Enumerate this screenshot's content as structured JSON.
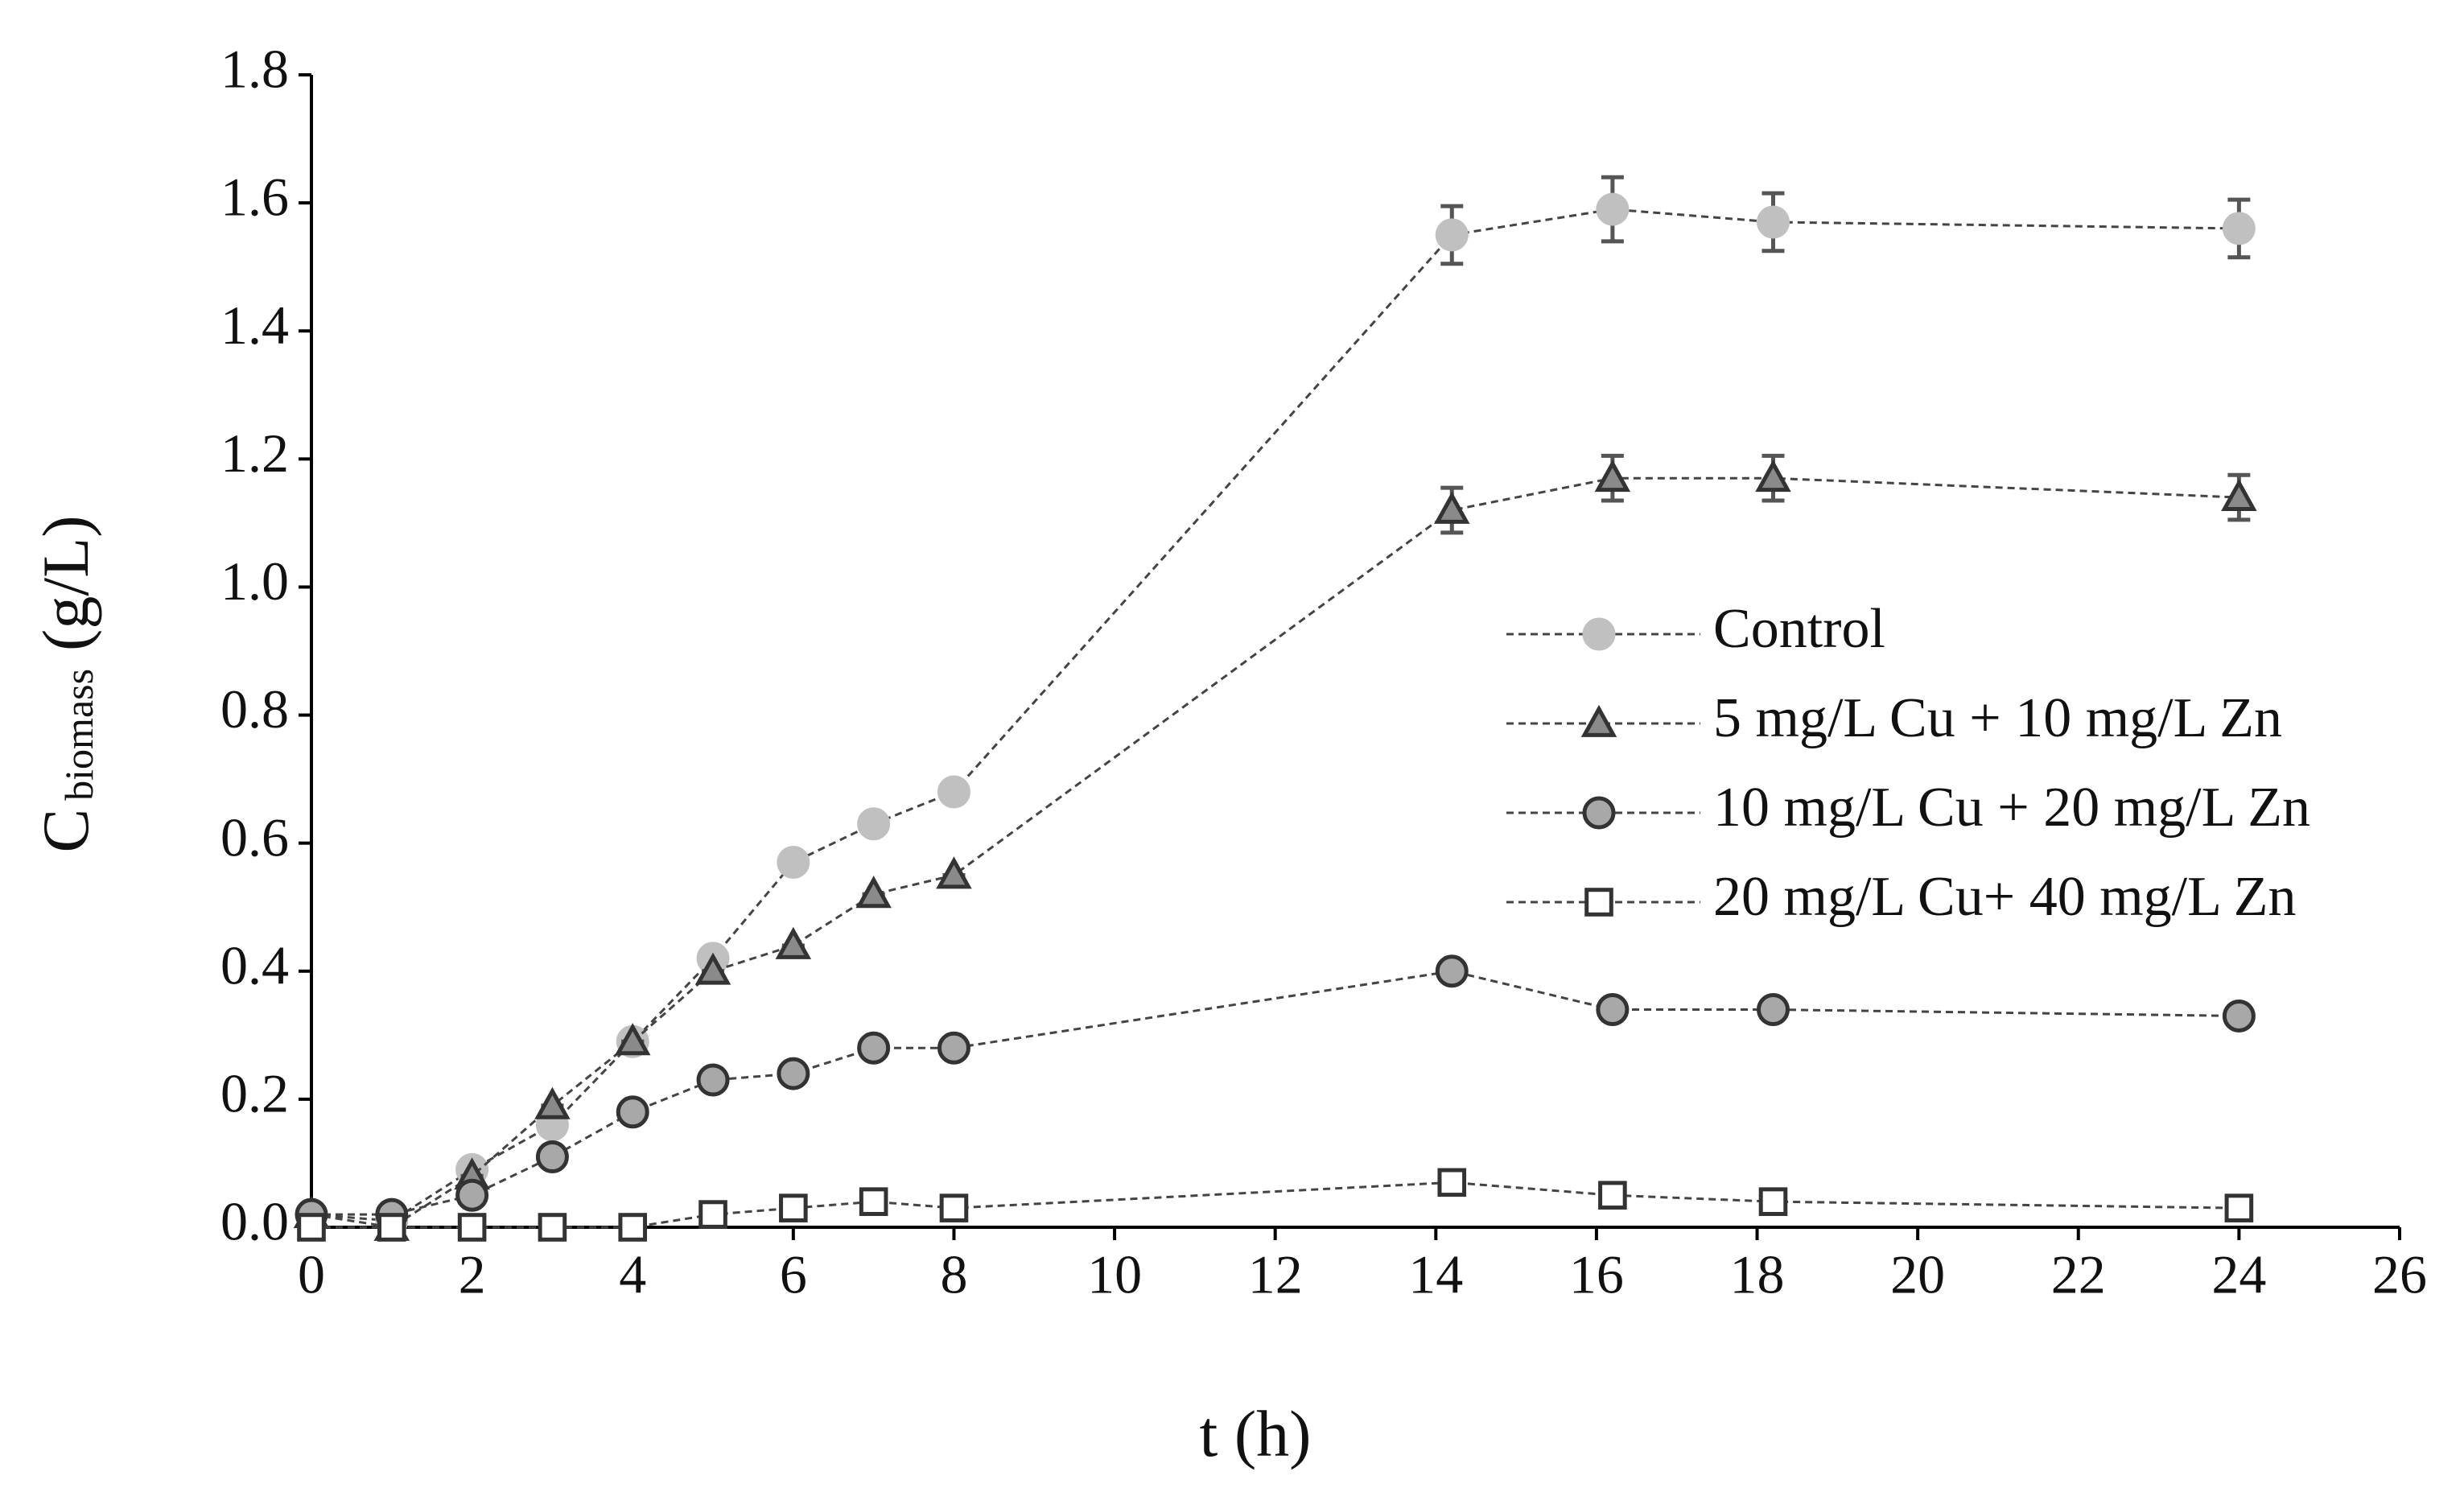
{
  "chart_data": {
    "type": "line",
    "x_label": "t (h)",
    "y_label": {
      "main": "C",
      "sub": "biomass",
      "unit": "(g/L)"
    },
    "x": [
      0,
      1,
      2,
      3,
      4,
      5,
      6,
      7,
      8,
      14.2,
      16.2,
      18.2,
      24
    ],
    "xlim": [
      0,
      26
    ],
    "xticks": [
      0,
      2,
      4,
      6,
      8,
      10,
      12,
      14,
      16,
      18,
      20,
      22,
      24,
      26
    ],
    "ylim": [
      0,
      1.8
    ],
    "yticks": [
      {
        "value": 0,
        "label": "0.0"
      },
      0.2,
      0.4,
      0.6,
      0.8,
      {
        "value": 1,
        "label": "1.0"
      },
      1.2,
      1.4,
      1.6,
      1.8
    ],
    "series": [
      {
        "name": "Control",
        "marker": "circle",
        "color": "#c0c0c0",
        "fill": "#c0c0c0",
        "values": [
          0.02,
          0.01,
          0.09,
          0.16,
          0.29,
          0.42,
          0.57,
          0.63,
          0.68,
          1.55,
          1.59,
          1.57,
          1.56
        ],
        "errors": [
          0,
          0,
          0,
          0,
          0,
          0,
          0,
          0,
          0,
          0.045,
          0.05,
          0.045,
          0.045
        ]
      },
      {
        "name": "5 mg/L Cu + 10 mg/L Zn",
        "marker": "triangle",
        "color": "#333333",
        "fill": "#8a8a8a",
        "values": [
          0.02,
          0,
          0.08,
          0.19,
          0.29,
          0.4,
          0.44,
          0.52,
          0.55,
          1.12,
          1.17,
          1.17,
          1.14
        ],
        "errors": [
          0,
          0,
          0,
          0,
          0,
          0,
          0,
          0,
          0,
          0.035,
          0.035,
          0.035,
          0.035
        ]
      },
      {
        "name": "10 mg/L Cu + 20 mg/L Zn",
        "marker": "circle",
        "color": "#333333",
        "fill": "#a8a8a8",
        "values": [
          0.02,
          0.02,
          0.05,
          0.11,
          0.18,
          0.23,
          0.24,
          0.28,
          0.28,
          0.4,
          0.34,
          0.34,
          0.33
        ]
      },
      {
        "name": "20 mg/L Cu+ 40 mg/L Zn",
        "marker": "square",
        "color": "#333333",
        "fill": "#ffffff",
        "values": [
          0,
          0,
          0,
          0,
          0,
          0.02,
          0.03,
          0.04,
          0.03,
          0.07,
          0.05,
          0.04,
          0.03
        ]
      }
    ]
  }
}
